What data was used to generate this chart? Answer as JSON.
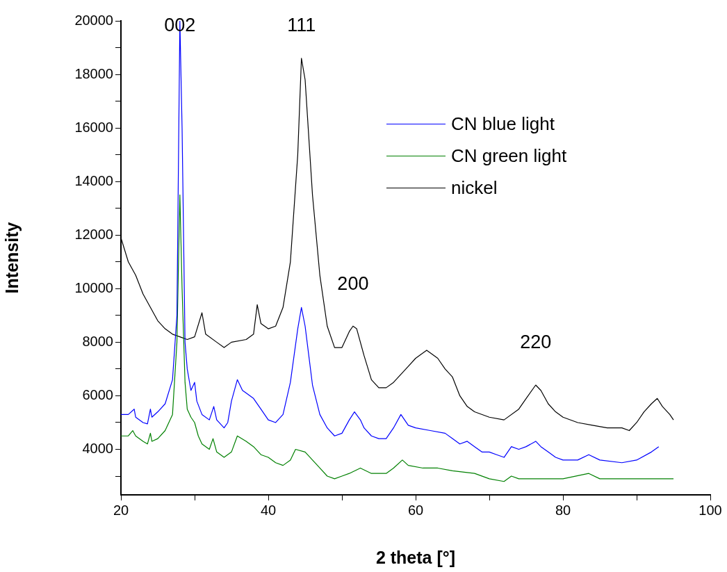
{
  "chart_data": {
    "type": "line",
    "xlabel": "2 theta [°]",
    "ylabel": "Intensity",
    "xlim": [
      20,
      100
    ],
    "xticks": [
      20,
      {
        "value": 30,
        "label": null
      },
      40,
      {
        "value": 50,
        "label": null
      },
      60,
      {
        "value": 70,
        "label": null
      },
      80,
      {
        "value": 90,
        "label": null
      },
      100
    ],
    "ylim": [
      2300,
      20000
    ],
    "yticks": [
      {
        "value": 3000,
        "label": null
      },
      4000,
      {
        "value": 5000,
        "label": null
      },
      6000,
      {
        "value": 7000,
        "label": null
      },
      8000,
      {
        "value": 9000,
        "label": null
      },
      10000,
      {
        "value": 11000,
        "label": null
      },
      12000,
      {
        "value": 13000,
        "label": null
      },
      14000,
      {
        "value": 15000,
        "label": null
      },
      16000,
      {
        "value": 17000,
        "label": null
      },
      18000,
      {
        "value": 19000,
        "label": null
      },
      20000
    ],
    "grid": false,
    "legend": "top right",
    "marker": "none",
    "line_style": "solid",
    "annotations": [
      {
        "text": "002",
        "x": 28,
        "y": 20000
      },
      {
        "text": "111",
        "x": 44.5,
        "y": 18600
      },
      {
        "text": "200",
        "x": 51.5,
        "y": 8600
      },
      {
        "text": "220",
        "x": 76.3,
        "y": 6400
      }
    ],
    "series": [
      {
        "name": "CN blue light",
        "color": "#0000ff",
        "x": [
          20,
          21,
          21.8,
          22,
          23,
          23.6,
          24,
          24.2,
          25,
          26,
          27,
          27.6,
          28,
          28.3,
          28.7,
          29,
          29.5,
          30,
          30.3,
          31,
          32,
          32.6,
          33,
          34,
          34.5,
          35,
          35.8,
          36.5,
          37,
          38,
          39,
          40,
          41,
          42,
          43,
          44,
          44.5,
          45,
          46,
          47,
          48,
          49,
          50,
          51,
          51.7,
          52.5,
          53,
          54,
          55,
          56,
          57,
          58,
          59,
          60,
          62,
          64,
          65,
          66,
          67,
          68,
          69,
          70,
          71,
          72,
          73,
          74,
          75,
          76.3,
          77,
          78,
          79,
          80,
          82,
          83.5,
          85,
          88,
          90,
          92,
          93
        ],
        "values": [
          5300,
          5300,
          5500,
          5200,
          5000,
          4950,
          5500,
          5200,
          5400,
          5700,
          6600,
          9000,
          20000,
          16000,
          8000,
          7000,
          6200,
          6500,
          5800,
          5300,
          5100,
          5600,
          5100,
          4800,
          5000,
          5800,
          6600,
          6200,
          6100,
          5900,
          5500,
          5100,
          5000,
          5300,
          6500,
          8500,
          9300,
          8600,
          6400,
          5300,
          4800,
          4500,
          4600,
          5100,
          5400,
          5100,
          4800,
          4500,
          4400,
          4400,
          4800,
          5300,
          4900,
          4800,
          4700,
          4600,
          4400,
          4200,
          4300,
          4100,
          3900,
          3900,
          3800,
          3700,
          4100,
          4000,
          4100,
          4300,
          4100,
          3900,
          3700,
          3600,
          3600,
          3800,
          3600,
          3500,
          3600,
          3900,
          4100
        ]
      },
      {
        "name": "CN green light",
        "color": "#008000",
        "x": [
          20,
          21,
          21.6,
          22,
          23,
          23.6,
          24,
          24.2,
          25,
          26,
          27,
          27.6,
          28,
          28.3,
          28.7,
          29,
          29.5,
          30,
          30.5,
          31,
          32,
          32.5,
          33,
          34,
          35,
          35.8,
          37,
          38,
          39,
          40,
          41,
          42,
          43,
          43.7,
          45,
          46,
          47,
          48,
          49,
          50,
          51,
          52.5,
          54,
          56,
          57,
          58.2,
          59,
          61,
          63,
          65,
          68,
          70,
          72,
          73,
          74,
          77,
          80,
          83.5,
          85,
          90,
          95
        ],
        "values": [
          4500,
          4500,
          4700,
          4500,
          4300,
          4200,
          4600,
          4300,
          4400,
          4700,
          5300,
          8000,
          13500,
          10000,
          6500,
          5500,
          5200,
          5000,
          4500,
          4200,
          4000,
          4400,
          3900,
          3700,
          3900,
          4500,
          4300,
          4100,
          3800,
          3700,
          3500,
          3400,
          3600,
          4000,
          3900,
          3600,
          3300,
          3000,
          2900,
          3000,
          3100,
          3300,
          3100,
          3100,
          3300,
          3600,
          3400,
          3300,
          3300,
          3200,
          3100,
          2900,
          2800,
          3000,
          2900,
          2900,
          2900,
          3100,
          2900,
          2900,
          2900
        ]
      },
      {
        "name": "nickel",
        "color": "#000000",
        "x": [
          20,
          21,
          22,
          23,
          24,
          25,
          26,
          27,
          28,
          29,
          30,
          31,
          31.5,
          33,
          34,
          35,
          37,
          38,
          38.5,
          39,
          40,
          41,
          42,
          43,
          44,
          44.5,
          45,
          46,
          47,
          48,
          49,
          50,
          51,
          51.5,
          52,
          53,
          54,
          55,
          56,
          57,
          58,
          59,
          60,
          61.5,
          63,
          64,
          65,
          66,
          67,
          68,
          70,
          72,
          74,
          75,
          76.3,
          77,
          78,
          79,
          80,
          82,
          84,
          86,
          88,
          89,
          90,
          91,
          92,
          92.8,
          93.5,
          94.5,
          95
        ],
        "values": [
          11900,
          11000,
          10500,
          9800,
          9300,
          8800,
          8500,
          8300,
          8200,
          8100,
          8200,
          9100,
          8300,
          8000,
          7800,
          8000,
          8100,
          8300,
          9400,
          8700,
          8500,
          8600,
          9300,
          11000,
          15000,
          18600,
          17800,
          13500,
          10500,
          8600,
          7800,
          7800,
          8400,
          8600,
          8500,
          7500,
          6600,
          6300,
          6300,
          6500,
          6800,
          7100,
          7400,
          7700,
          7400,
          7000,
          6700,
          6000,
          5600,
          5400,
          5200,
          5100,
          5500,
          5900,
          6400,
          6200,
          5700,
          5400,
          5200,
          5000,
          4900,
          4800,
          4800,
          4700,
          5000,
          5400,
          5700,
          5900,
          5600,
          5300,
          5100
        ]
      }
    ]
  }
}
